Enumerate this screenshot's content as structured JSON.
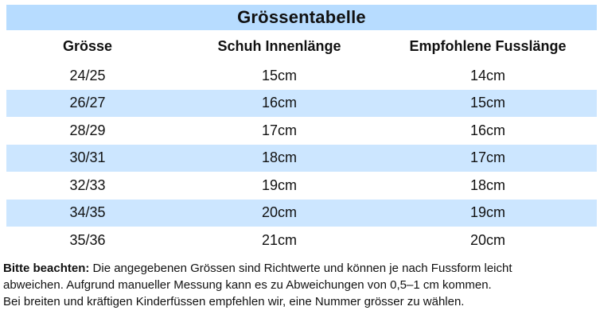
{
  "table": {
    "title": "Grössentabelle",
    "headers": [
      "Grösse",
      "Schuh Innenlänge",
      "Empfohlene Fusslänge"
    ],
    "rows": [
      [
        "24/25",
        "15cm",
        "14cm"
      ],
      [
        "26/27",
        "16cm",
        "15cm"
      ],
      [
        "28/29",
        "17cm",
        "16cm"
      ],
      [
        "30/31",
        "18cm",
        "17cm"
      ],
      [
        "32/33",
        "19cm",
        "18cm"
      ],
      [
        "34/35",
        "20cm",
        "19cm"
      ],
      [
        "35/36",
        "21cm",
        "20cm"
      ]
    ]
  },
  "note": {
    "label": "Bitte beachten:",
    "line1": " Die angegebenen Grössen sind Richtwerte und können je nach Fussform leicht",
    "line2": "abweichen. Aufgrund manueller Messung kann es zu Abweichungen von 0,5–1 cm kommen.",
    "line3": "Bei breiten und kräftigen Kinderfüssen empfehlen wir, eine Nummer grösser zu wählen."
  },
  "colors": {
    "title_background": "#b7dcff",
    "stripe_background": "#cce6ff",
    "text": "#111111"
  }
}
